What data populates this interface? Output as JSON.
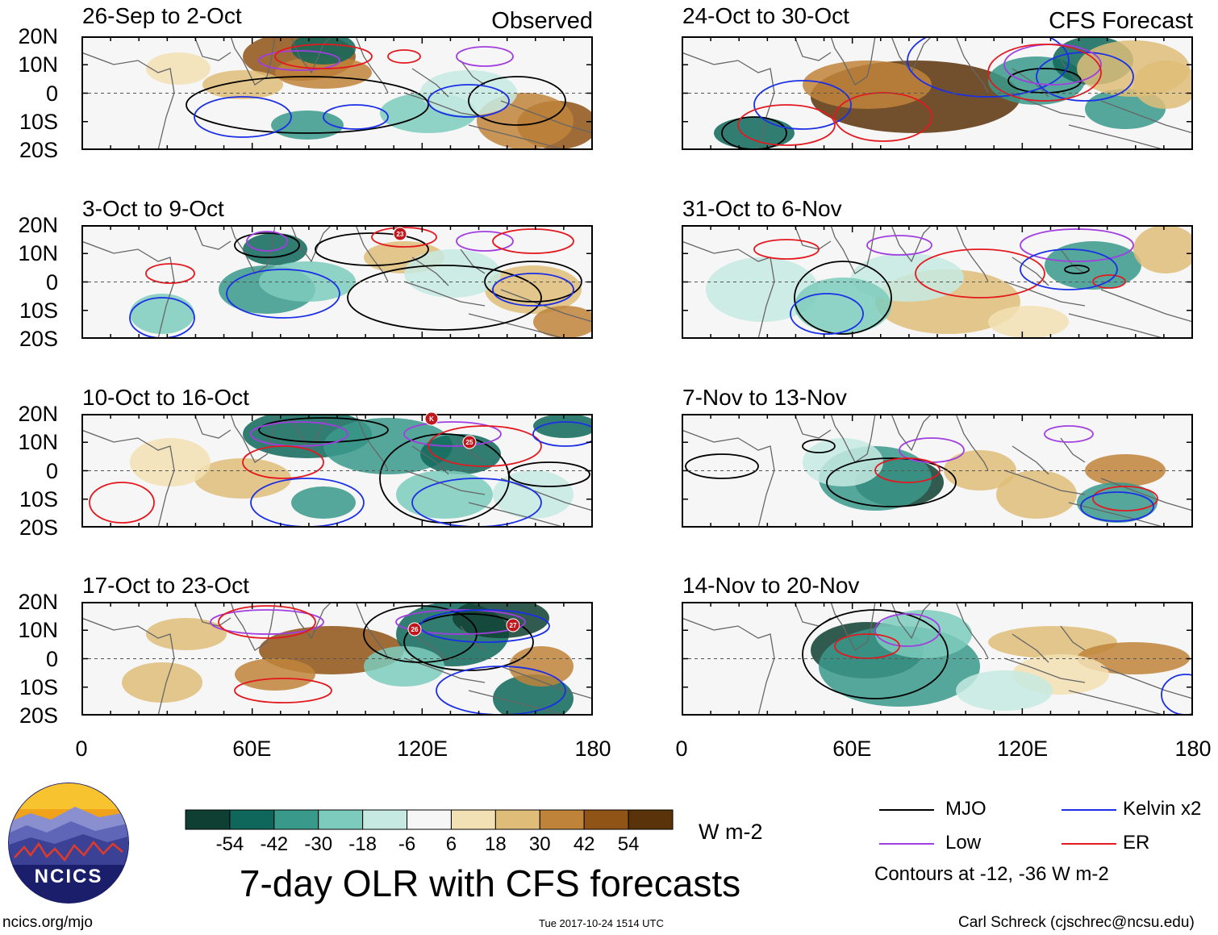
{
  "chart_data": {
    "type": "heatmap",
    "title": "7-day OLR with CFS forecasts",
    "units": "W m-2",
    "section_labels": {
      "observed": "Observed",
      "forecast": "CFS Forecast"
    },
    "y_ticks": [
      "20N",
      "10N",
      "0",
      "10S",
      "20S"
    ],
    "x_ticks": [
      "0",
      "60E",
      "120E",
      "180"
    ],
    "lon_range": [
      0,
      180
    ],
    "lat_range": [
      -20,
      20
    ],
    "panels": [
      {
        "title": "26-Sep to 2-Oct",
        "type": "observed"
      },
      {
        "title": "3-Oct to 9-Oct",
        "type": "observed"
      },
      {
        "title": "10-Oct to 16-Oct",
        "type": "observed"
      },
      {
        "title": "17-Oct to 23-Oct",
        "type": "observed"
      },
      {
        "title": "24-Oct to 30-Oct",
        "type": "forecast"
      },
      {
        "title": "31-Oct to 6-Nov",
        "type": "forecast"
      },
      {
        "title": "7-Nov to 13-Nov",
        "type": "forecast"
      },
      {
        "title": "14-Nov to 20-Nov",
        "type": "forecast"
      }
    ],
    "colorbar": {
      "ticks": [
        "-54",
        "-42",
        "-30",
        "-18",
        "-6",
        "6",
        "18",
        "30",
        "42",
        "54"
      ],
      "colors": [
        "#0f3f33",
        "#0e675a",
        "#39998b",
        "#7ccbbd",
        "#c6eae2",
        "#f6f6f6",
        "#f2e1b4",
        "#dfbd78",
        "#bf843a",
        "#8f5416",
        "#5a330a"
      ]
    },
    "legend": [
      {
        "label": "MJO",
        "color": "#000000"
      },
      {
        "label": "Kelvin x2",
        "color": "#1a2fe6"
      },
      {
        "label": "Low",
        "color": "#a13ee0"
      },
      {
        "label": "ER",
        "color": "#e3191f"
      }
    ],
    "contour_note": "Contours at -12, -36 W m-2",
    "storm_markers": [
      {
        "panel": 1,
        "label": "23"
      },
      {
        "panel": 2,
        "label": "K"
      },
      {
        "panel": 2,
        "label": "25"
      },
      {
        "panel": 3,
        "label": "26"
      },
      {
        "panel": 3,
        "label": "27"
      }
    ]
  },
  "logo": {
    "text": "NCICS"
  },
  "footer": {
    "url": "ncics.org/mjo",
    "timestamp": "Tue 2017-10-24 1514 UTC",
    "credit": "Carl Schreck (cjschrec@ncsu.edu)"
  }
}
